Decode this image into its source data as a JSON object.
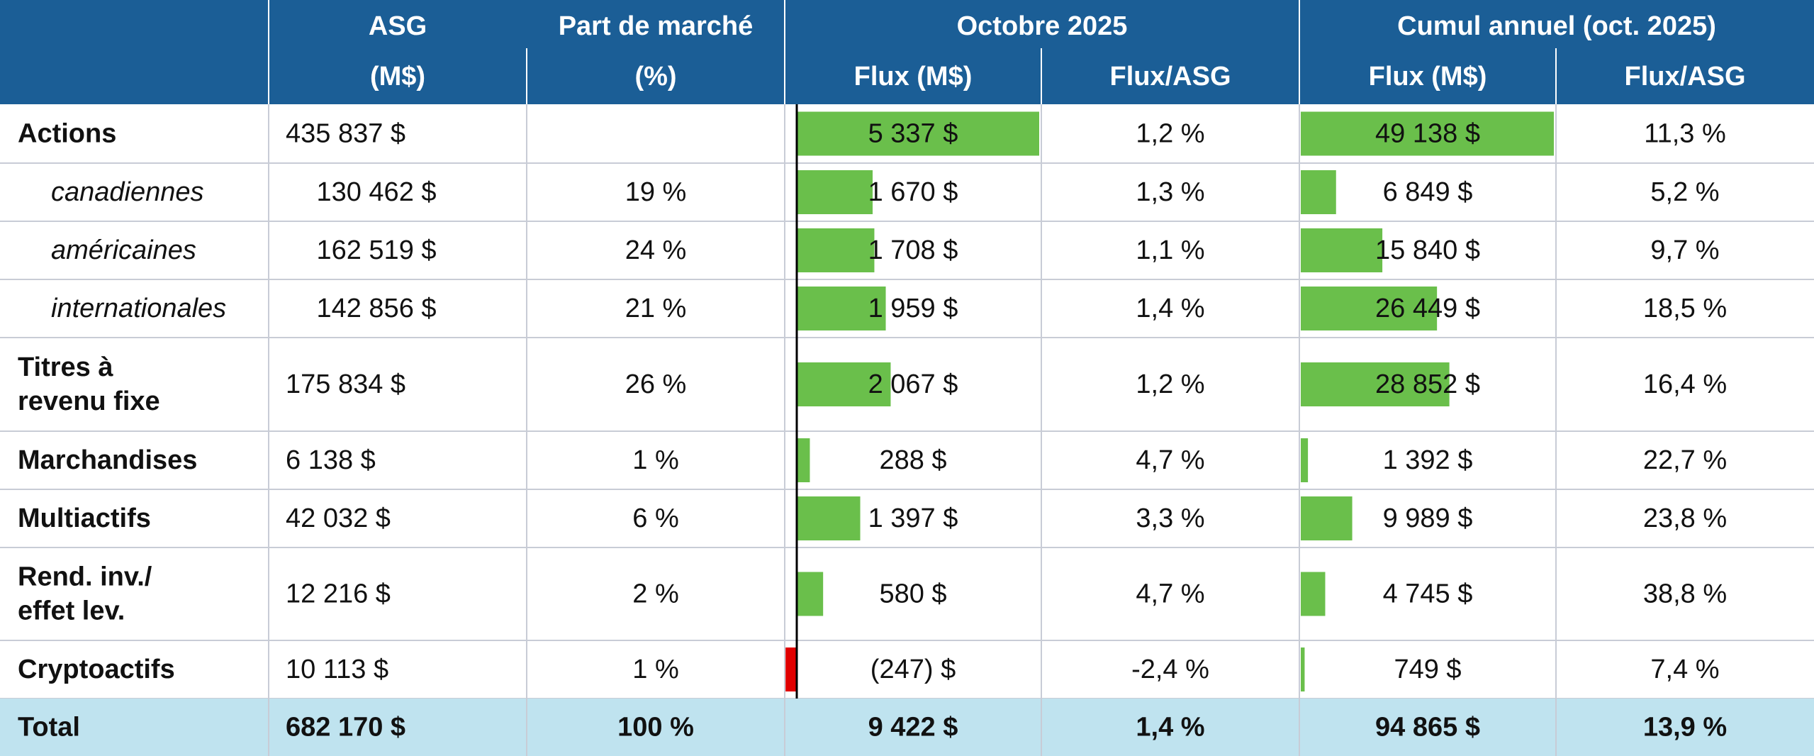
{
  "table": {
    "header": {
      "top": [
        "ASG",
        "Part de marché",
        "Octobre 2025",
        "Cumul annuel (oct. 2025)"
      ],
      "bottom": [
        "(M$)",
        "(%)",
        "Flux (M$)",
        "Flux/ASG",
        "Flux (M$)",
        "Flux/ASG"
      ]
    },
    "rows": [
      {
        "label": [
          "Actions"
        ],
        "asg": "435 837 $",
        "oct_flow": {
          "value": 5337,
          "label": "5 337 $"
        },
        "oct_ratio": "1,2 %",
        "ytd_flow": {
          "value": 49138,
          "label": "49 138 $"
        },
        "ytd_ratio": "11,3 %"
      },
      {
        "label": [
          "canadiennes"
        ],
        "sub": true,
        "asg": "130 462 $",
        "share": "19 %",
        "oct_flow": {
          "value": 1670,
          "label": "1 670 $"
        },
        "oct_ratio": "1,3 %",
        "ytd_flow": {
          "value": 6849,
          "label": "6 849 $"
        },
        "ytd_ratio": "5,2 %"
      },
      {
        "label": [
          "américaines"
        ],
        "sub": true,
        "asg": "162 519 $",
        "share": "24 %",
        "oct_flow": {
          "value": 1708,
          "label": "1 708 $"
        },
        "oct_ratio": "1,1 %",
        "ytd_flow": {
          "value": 15840,
          "label": "15 840 $"
        },
        "ytd_ratio": "9,7 %"
      },
      {
        "label": [
          "internationales"
        ],
        "sub": true,
        "asg": "142 856 $",
        "share": "21 %",
        "oct_flow": {
          "value": 1959,
          "label": "1 959 $"
        },
        "oct_ratio": "1,4 %",
        "ytd_flow": {
          "value": 26449,
          "label": "26 449 $"
        },
        "ytd_ratio": "18,5 %"
      },
      {
        "label": [
          "Titres à",
          "revenu fixe"
        ],
        "asg": "175 834 $",
        "share": "26 %",
        "oct_flow": {
          "value": 2067,
          "label": "2 067 $"
        },
        "oct_ratio": "1,2 %",
        "ytd_flow": {
          "value": 28852,
          "label": "28 852 $"
        },
        "ytd_ratio": "16,4 %"
      },
      {
        "label": [
          "Marchandises"
        ],
        "asg": "6 138 $",
        "share": "1 %",
        "oct_flow": {
          "value": 288,
          "label": "288 $"
        },
        "oct_ratio": "4,7 %",
        "ytd_flow": {
          "value": 1392,
          "label": "1 392 $"
        },
        "ytd_ratio": "22,7 %"
      },
      {
        "label": [
          "Multiactifs"
        ],
        "asg": "42 032 $",
        "share": "6 %",
        "oct_flow": {
          "value": 1397,
          "label": "1 397 $"
        },
        "oct_ratio": "3,3 %",
        "ytd_flow": {
          "value": 9989,
          "label": "9 989 $"
        },
        "ytd_ratio": "23,8 %"
      },
      {
        "label": [
          "Rend. inv./",
          "effet lev."
        ],
        "asg": "12 216 $",
        "share": "2 %",
        "oct_flow": {
          "value": 580,
          "label": "580 $"
        },
        "oct_ratio": "4,7 %",
        "ytd_flow": {
          "value": 4745,
          "label": "4 745 $"
        },
        "ytd_ratio": "38,8 %"
      },
      {
        "label": [
          "Cryptoactifs"
        ],
        "asg": "10 113 $",
        "share": "1 %",
        "oct_flow": {
          "value": -247,
          "label": "(247) $"
        },
        "oct_ratio": "-2,4 %",
        "ytd_flow": {
          "value": 749,
          "label": "749 $"
        },
        "ytd_ratio": "7,4 %"
      }
    ],
    "total": {
      "label": "Total",
      "asg": "682 170 $",
      "share": "100 %",
      "oct_flow": "9 422 $",
      "oct_ratio": "1,4 %",
      "ytd_flow": "94 865 $",
      "ytd_ratio": "13,9 %"
    },
    "colors": {
      "header": "#1b5e96",
      "total": "#bfe3ef",
      "positive": "#6abf4b",
      "negative": "#e00000"
    }
  }
}
